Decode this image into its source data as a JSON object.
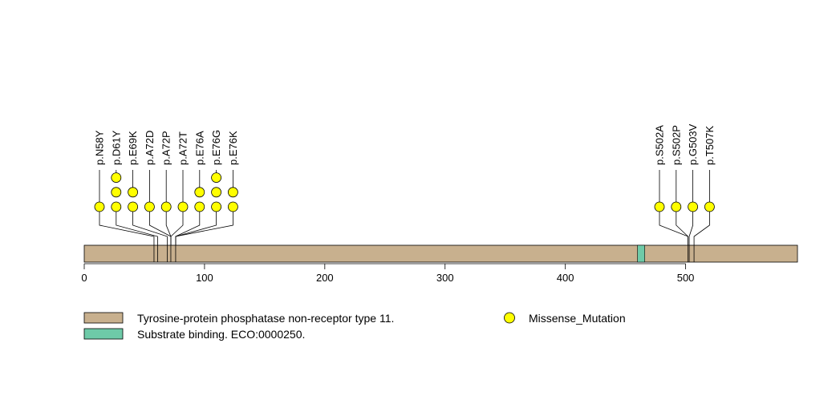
{
  "chart_data": {
    "type": "lollipop",
    "protein_length": 593,
    "xlim": [
      0,
      593
    ],
    "x_ticks": [
      0,
      100,
      200,
      300,
      400,
      500
    ],
    "tick_labels": [
      "0",
      "100",
      "200",
      "300",
      "400",
      "500"
    ],
    "backbone_color": "#c8b08e",
    "domains": [
      {
        "name": "Substrate binding. ECO:0000250.",
        "start": 460,
        "end": 466,
        "color": "#6ecaa8"
      }
    ],
    "mutation_positions": [
      58,
      61,
      69,
      72,
      76,
      502,
      503,
      507
    ],
    "mutations": [
      {
        "label": "p.N58Y",
        "position": 58,
        "count": 1
      },
      {
        "label": "p.D61Y",
        "position": 61,
        "count": 3
      },
      {
        "label": "p.E69K",
        "position": 69,
        "count": 2
      },
      {
        "label": "p.A72D",
        "position": 72,
        "count": 1
      },
      {
        "label": "p.A72P",
        "position": 72,
        "count": 1
      },
      {
        "label": "p.A72T",
        "position": 72,
        "count": 1
      },
      {
        "label": "p.E76A",
        "position": 76,
        "count": 2
      },
      {
        "label": "p.E76G",
        "position": 76,
        "count": 3
      },
      {
        "label": "p.E76K",
        "position": 76,
        "count": 2
      },
      {
        "label": "p.S502A",
        "position": 502,
        "count": 1
      },
      {
        "label": "p.S502P",
        "position": 502,
        "count": 1
      },
      {
        "label": "p.G503V",
        "position": 503,
        "count": 1
      },
      {
        "label": "p.T507K",
        "position": 507,
        "count": 1
      }
    ],
    "marker_color": "#ffff00",
    "legend": [
      {
        "label": "Tyrosine-protein phosphatase non-receptor type 11.",
        "kind": "box",
        "color": "#c8b08e"
      },
      {
        "label": "Substrate binding. ECO:0000250.",
        "kind": "box",
        "color": "#6ecaa8"
      },
      {
        "label": "Missense_Mutation",
        "kind": "circle",
        "color": "#ffff00"
      }
    ]
  }
}
